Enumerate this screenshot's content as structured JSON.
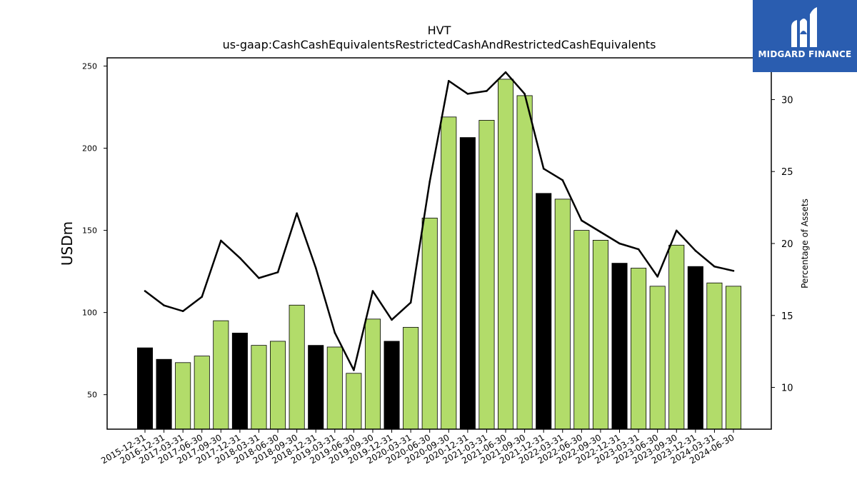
{
  "chart_data": {
    "type": "bar",
    "title": "HVT",
    "subtitle": "us-gaap:CashCashEquivalentsRestrictedCashAndRestrictedCashEquivalents",
    "ylabel": "USDm",
    "ylabel_right": "Percentage of Assets",
    "ylim": [
      29,
      255
    ],
    "ylim_right": [
      7.1,
      32.9
    ],
    "yticks": [
      50,
      100,
      150,
      200,
      250
    ],
    "yticks_right": [
      10,
      15,
      20,
      25,
      30
    ],
    "categories": [
      "2015-12-31",
      "2016-12-31",
      "2017-03-31",
      "2017-06-30",
      "2017-09-30",
      "2017-12-31",
      "2018-03-31",
      "2018-06-30",
      "2018-09-30",
      "2018-12-31",
      "2019-03-31",
      "2019-06-30",
      "2019-09-30",
      "2019-12-31",
      "2020-03-31",
      "2020-06-30",
      "2020-09-30",
      "2020-12-31",
      "2021-03-31",
      "2021-06-30",
      "2021-09-30",
      "2021-12-31",
      "2022-03-31",
      "2022-06-30",
      "2022-09-30",
      "2022-12-31",
      "2023-03-31",
      "2023-06-30",
      "2023-09-30",
      "2023-12-31",
      "2024-03-31",
      "2024-06-30"
    ],
    "series": [
      {
        "type": "bar",
        "values": [
          78.5,
          71.5,
          69.5,
          73.5,
          95,
          87.5,
          80,
          82.5,
          104.5,
          80,
          79,
          63,
          96,
          82.5,
          91,
          157.5,
          219,
          206.5,
          217,
          242,
          232,
          172.5,
          169,
          150,
          144,
          130,
          127,
          116,
          141,
          128,
          118,
          116
        ],
        "colors": [
          "#000000",
          "#000000",
          "#b2dc6a",
          "#b2dc6a",
          "#b2dc6a",
          "#000000",
          "#b2dc6a",
          "#b2dc6a",
          "#b2dc6a",
          "#000000",
          "#b2dc6a",
          "#b2dc6a",
          "#b2dc6a",
          "#000000",
          "#b2dc6a",
          "#b2dc6a",
          "#b2dc6a",
          "#000000",
          "#b2dc6a",
          "#b2dc6a",
          "#b2dc6a",
          "#000000",
          "#b2dc6a",
          "#b2dc6a",
          "#b2dc6a",
          "#000000",
          "#b2dc6a",
          "#b2dc6a",
          "#b2dc6a",
          "#000000",
          "#b2dc6a",
          "#b2dc6a"
        ]
      },
      {
        "type": "line",
        "axis": "right",
        "color": "#000000",
        "values": [
          16.7,
          15.7,
          15.3,
          16.3,
          20.2,
          19.0,
          17.6,
          18.0,
          22.1,
          18.3,
          13.8,
          11.2,
          16.7,
          14.7,
          15.9,
          24.3,
          31.3,
          30.4,
          30.6,
          31.9,
          30.4,
          25.2,
          24.4,
          21.6,
          20.8,
          20.0,
          19.6,
          17.7,
          20.9,
          19.5,
          18.4,
          18.1
        ]
      }
    ],
    "grid": false,
    "legend": "none"
  },
  "logo": {
    "text": "MIDGARD FINANCE",
    "color": "#2a5db0"
  }
}
